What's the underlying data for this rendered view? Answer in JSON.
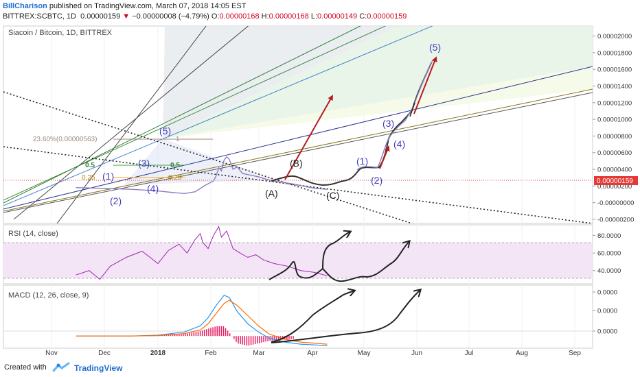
{
  "header": {
    "author": "BillCharison",
    "published_text": " published on TradingView.com, March 07, 2018 14:05 EST",
    "symbol": "BITTREX:SCBTC, 1D",
    "last": "0.00000159",
    "change": "−0.00000008 (−4.79%)",
    "open_label": "O:",
    "open": "0.00000168",
    "high_label": "H:",
    "high": "0.00000168",
    "low_label": "L:",
    "low": "0.00000149",
    "close_label": "C:",
    "close": "0.00000159"
  },
  "main_panel": {
    "title": "Siacoin / Bitcoin, 1D, BITTREX",
    "price_badge": "0.00000159",
    "fib_label": "23.60%(0.00000563)",
    "fib_one": "1",
    "fib_half_left": "0.5",
    "fib_half_mid": "0.5",
    "fib_quarter_left": "0.25",
    "fib_quarter_mid": "0.25"
  },
  "wave_labels": {
    "w1": "(1)",
    "w2": "(2)",
    "w3": "(3)",
    "w4": "(4)",
    "w5": "(5)",
    "a": "(A)",
    "b": "(B)",
    "c": "(C)",
    "f1": "(1)",
    "f2": "(2)",
    "f3": "(3)",
    "f4": "(4)",
    "f5": "(5)"
  },
  "rsi_panel": {
    "title": "RSI (14, close)"
  },
  "macd_panel": {
    "title": "MACD (12, 26, close, 9)"
  },
  "footer": {
    "created_with": "Created with",
    "brand": "TradingView"
  },
  "colors": {
    "price_line": "#8e7cc3",
    "rsi_line": "#9c27b0",
    "rsi_band": "#f3e5f5",
    "macd_line": "#2196f3",
    "signal_line": "#ff6d00",
    "histogram": "#e91e63",
    "arrow_red": "#b71c1c",
    "wave_blue": "#3f3fbf",
    "grid": "#eeeeee",
    "badge_red": "#e53935"
  },
  "chart_data": [
    {
      "type": "line",
      "title": "Siacoin / Bitcoin, 1D, BITTREX",
      "x_axis": {
        "ticks": [
          "Nov",
          "Dec",
          "2018",
          "Feb",
          "Mar",
          "Apr",
          "May",
          "Jun",
          "Jul",
          "Aug",
          "Sep"
        ]
      },
      "y_axis": {
        "ticks": [
          "0.00002000",
          "0.00001800",
          "0.00001600",
          "0.00001400",
          "0.00001200",
          "0.00001000",
          "0.00000800",
          "0.00000600",
          "0.00000400",
          "0.00000200",
          "0.00000159",
          "-0.00000000",
          "-0.00000200"
        ],
        "tick_values": [
          2e-05,
          1.8e-05,
          1.6e-05,
          1.4e-05,
          1.2e-05,
          1e-05,
          8e-06,
          6e-06,
          4e-06,
          2e-06,
          1.59e-06,
          0,
          -2e-06
        ],
        "range": [
          -2.5e-06,
          2.12e-05
        ]
      },
      "series": [
        {
          "values": [
            [
              -1.55,
              1.8e-06
            ],
            [
              -1.2,
              1.75e-06
            ],
            [
              -1.0,
              1.7e-06
            ],
            [
              -0.5,
              1.6e-06
            ],
            [
              0.0,
              1.4e-06
            ],
            [
              0.3,
              1.2e-06
            ],
            [
              0.5,
              1.1e-06
            ],
            [
              0.7,
              1.3e-06
            ],
            [
              0.9,
              2.1e-06
            ],
            [
              1.05,
              2.6e-06
            ],
            [
              1.1,
              3.2e-06
            ],
            [
              1.15,
              4.2e-06
            ],
            [
              1.2,
              3.8e-06
            ],
            [
              1.25,
              5.1e-06
            ],
            [
              1.3,
              5.5e-06
            ],
            [
              1.35,
              5.2e-06
            ],
            [
              1.42,
              4e-06
            ],
            [
              1.5,
              4.3e-06
            ],
            [
              1.6,
              3.5e-06
            ],
            [
              1.75,
              3.3e-06
            ],
            [
              1.9,
              3.1e-06
            ],
            [
              2.05,
              2.8e-06
            ],
            [
              2.2,
              2.6e-06
            ],
            [
              2.4,
              2.4e-06
            ],
            [
              2.6,
              2.2e-06
            ],
            [
              2.8,
              1.9e-06
            ],
            [
              3.0,
              1.7e-06
            ],
            [
              3.2,
              1.6e-06
            ]
          ]
        }
      ]
    },
    {
      "type": "line",
      "title": "RSI (14, close)",
      "y_axis": {
        "ticks": [
          "80.0000",
          "60.0000",
          "40.0000"
        ],
        "tick_values": [
          80,
          60,
          40
        ],
        "range": [
          25,
          92
        ],
        "band": [
          30,
          70
        ]
      },
      "series": [
        {
          "values": [
            [
              -1.55,
              35
            ],
            [
              -1.3,
              40
            ],
            [
              -1.1,
              30
            ],
            [
              -0.9,
              45
            ],
            [
              -0.6,
              55
            ],
            [
              -0.3,
              62
            ],
            [
              0.0,
              48
            ],
            [
              0.2,
              63
            ],
            [
              0.4,
              70
            ],
            [
              0.55,
              60
            ],
            [
              0.7,
              75
            ],
            [
              0.8,
              82
            ],
            [
              0.85,
              72
            ],
            [
              0.95,
              65
            ],
            [
              1.05,
              80
            ],
            [
              1.15,
              90
            ],
            [
              1.2,
              78
            ],
            [
              1.3,
              85
            ],
            [
              1.42,
              65
            ],
            [
              1.55,
              60
            ],
            [
              1.7,
              55
            ],
            [
              1.85,
              58
            ],
            [
              2.0,
              52
            ],
            [
              2.2,
              48
            ],
            [
              2.45,
              45
            ],
            [
              2.7,
              40
            ],
            [
              2.95,
              38
            ],
            [
              3.15,
              35
            ],
            [
              3.2,
              34
            ]
          ]
        }
      ]
    },
    {
      "type": "line",
      "title": "MACD (12, 26, close, 9)",
      "y_axis": {
        "ticks": [
          "0.0000",
          "0.0000",
          "0.0000"
        ],
        "range": [
          -0.3,
          1.25
        ]
      },
      "series": [
        {
          "values": [
            [
              -1.55,
              0.0
            ],
            [
              -0.5,
              0.0
            ],
            [
              0.0,
              0.02
            ],
            [
              0.5,
              0.1
            ],
            [
              0.8,
              0.25
            ],
            [
              0.95,
              0.45
            ],
            [
              1.1,
              0.75
            ],
            [
              1.25,
              1.0
            ],
            [
              1.35,
              0.95
            ],
            [
              1.5,
              0.6
            ],
            [
              1.7,
              0.3
            ],
            [
              1.9,
              0.1
            ],
            [
              2.1,
              -0.05
            ],
            [
              2.4,
              -0.15
            ],
            [
              2.7,
              -0.2
            ],
            [
              3.0,
              -0.22
            ],
            [
              3.2,
              -0.24
            ]
          ]
        },
        {
          "values": [
            [
              -1.55,
              0.0
            ],
            [
              -0.5,
              0.0
            ],
            [
              0.0,
              0.01
            ],
            [
              0.5,
              0.06
            ],
            [
              0.8,
              0.15
            ],
            [
              0.95,
              0.3
            ],
            [
              1.1,
              0.55
            ],
            [
              1.25,
              0.8
            ],
            [
              1.35,
              0.88
            ],
            [
              1.5,
              0.75
            ],
            [
              1.7,
              0.5
            ],
            [
              1.9,
              0.25
            ],
            [
              2.1,
              0.05
            ],
            [
              2.4,
              -0.08
            ],
            [
              2.7,
              -0.15
            ],
            [
              3.0,
              -0.18
            ],
            [
              3.2,
              -0.2
            ]
          ]
        }
      ]
    }
  ]
}
